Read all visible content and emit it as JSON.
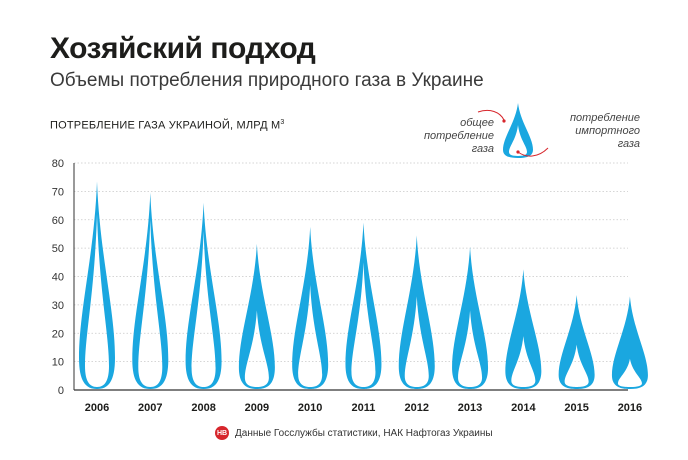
{
  "header": {
    "title": "Хозяйский подход",
    "subtitle": "Объемы потребления природного газа в Украине"
  },
  "legend": {
    "outer_label_line1": "общее",
    "outer_label_line2": "потребление",
    "outer_label_line3": "газа",
    "inner_label_line1": "потребление",
    "inner_label_line2": "импортного",
    "inner_label_line3": "газа"
  },
  "source": {
    "logo_text": "НВ",
    "text": "Данные Госслужбы статистики, НАК Нафтогаз Украины"
  },
  "colors": {
    "flame": "#1aa7e0",
    "grid": "#c8c8c8",
    "axis": "#333333",
    "arrow": "#d7262c"
  },
  "chart_data": {
    "type": "bar",
    "title": "Хозяйский подход",
    "subtitle": "Объемы потребления природного газа в Украине",
    "ylabel": "ПОТРЕБЛЕНИЕ ГАЗА УКРАИНОЙ, МЛРД М",
    "ylabel_superscript": "3",
    "ylim": [
      0,
      80
    ],
    "yticks": [
      0,
      10,
      20,
      30,
      40,
      50,
      60,
      70,
      80
    ],
    "categories": [
      "2006",
      "2007",
      "2008",
      "2009",
      "2010",
      "2011",
      "2012",
      "2013",
      "2014",
      "2015",
      "2016"
    ],
    "series": [
      {
        "name": "общее потребление газа",
        "values": [
          73.5,
          69.5,
          66,
          51.5,
          57.5,
          59,
          54.5,
          50.5,
          42.5,
          33.5,
          33
        ]
      },
      {
        "name": "потребление импортного газа",
        "values": [
          62,
          60,
          56,
          28,
          37,
          45,
          33,
          28,
          19,
          16,
          11
        ]
      }
    ],
    "grid": true,
    "legend_position": "top-right"
  }
}
